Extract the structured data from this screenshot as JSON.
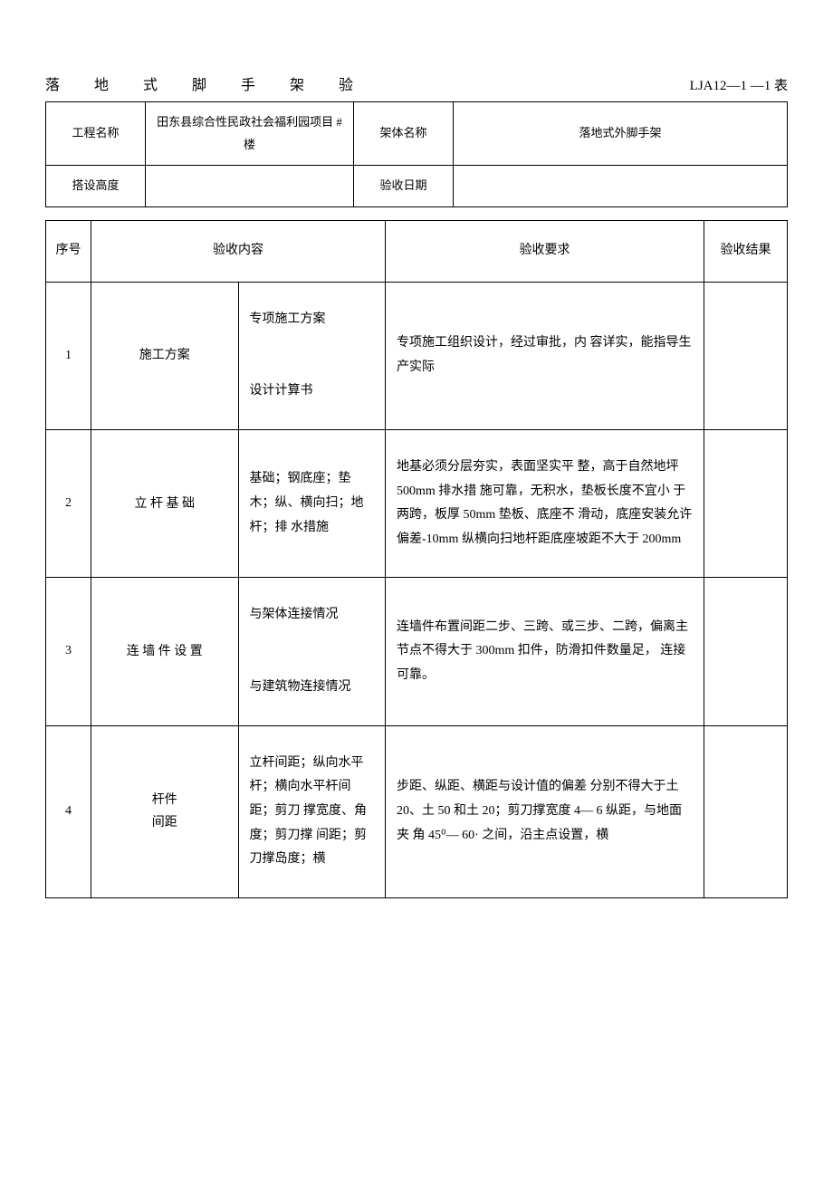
{
  "doc": {
    "title_chars": "落地式脚手架验",
    "title_code": "LJA12—1 —1 表"
  },
  "header": {
    "labels": {
      "project_name": "工程名称",
      "frame_name": "架体名称",
      "setup_height": "搭设高度",
      "accept_date": "验收日期"
    },
    "values": {
      "project_name": "田东县综合性民政社会福利园项目 #楼",
      "frame_name": "落地式外脚手架",
      "setup_height": "",
      "accept_date": ""
    }
  },
  "table_head": {
    "seq": "序号",
    "content": "验收内容",
    "requirement": "验收要求",
    "result": "验收结果"
  },
  "rows": [
    {
      "seq": "1",
      "category": "施工方案",
      "content": "专项施工方案\n\n设计计算书",
      "requirement": "专项施工组织设计，经过审批，内 容详实，能指导生产实际",
      "result": ""
    },
    {
      "seq": "2",
      "category": "立 杆 基 础",
      "content": "基础；钢底座；垫木；纵、横向扫；地杆；排 水措施",
      "requirement": "地基必须分层夯实，表面坚实平 整，高于自然地坪 500mm 排水措 施可靠，无积水，垫板长度不宜小 于两跨，板厚 50mm 垫板、底座不 滑动，底座安装允许偏差-10mm 纵横向扫地杆距底座坡距不大于 200mm",
      "result": ""
    },
    {
      "seq": "3",
      "category": "连 墙 件 设 置",
      "content": "与架体连接情况\n\n与建筑物连接情况",
      "requirement": "连墙件布置间距二步、三跨、或三步、二跨，偏离主节点不得大于 300mm 扣件，防滑扣件数量足， 连接可靠。",
      "result": ""
    },
    {
      "seq": "4",
      "category": "杆件\n间距",
      "content": "立杆间距；纵向水平杆；横向水平杆间距；剪刀 撑宽度、角度；剪刀撑 间距；剪刀撑岛度；横",
      "requirement": "步距、纵距、横距与设计值的偏差 分别不得大于土 20、土 50 和土 20；剪刀撑宽度 4— 6 纵距，与地面夹 角 45⁰— 60· 之间，沿主点设置，横",
      "result": ""
    }
  ],
  "style": {
    "background_color": "#ffffff",
    "text_color": "#000000",
    "border_color": "#000000",
    "base_fontsize": 14,
    "title_fontsize": 16,
    "header_fontsize": 13
  }
}
